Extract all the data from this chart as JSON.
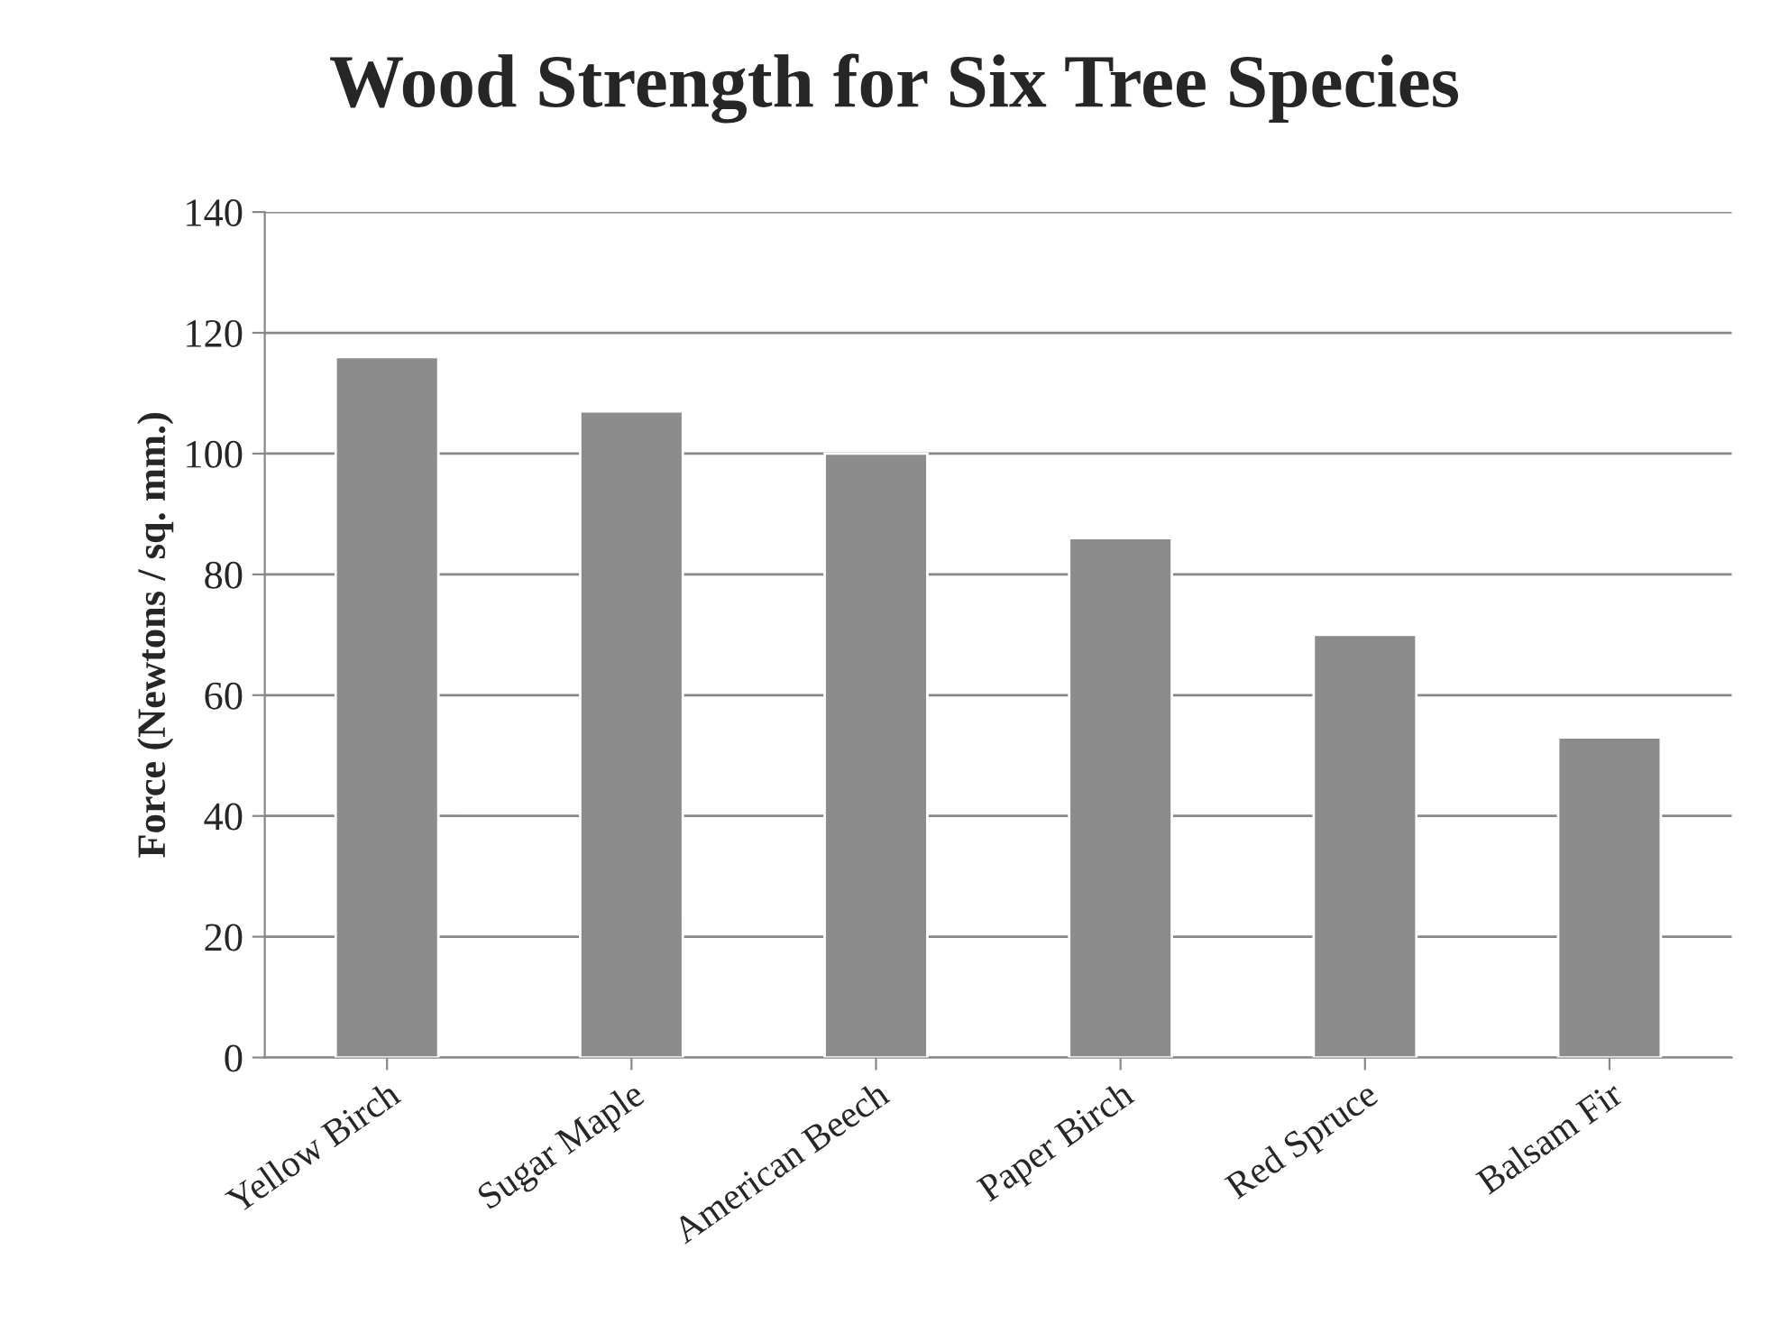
{
  "chart_data": {
    "type": "bar",
    "title": "Wood Strength for Six Tree Species",
    "ylabel": "Force (Newtons / sq. mm.)",
    "categories": [
      "Yellow Birch",
      "Sugar Maple",
      "American Beech",
      "Paper Birch",
      "Red Spruce",
      "Balsam Fir"
    ],
    "values": [
      116,
      107,
      100,
      86,
      70,
      53
    ],
    "color": "#8c8c8c",
    "ylim": [
      0,
      140
    ],
    "yticks": [
      0,
      20,
      40,
      60,
      80,
      100,
      120,
      140
    ],
    "grid": "y",
    "legend": false
  }
}
